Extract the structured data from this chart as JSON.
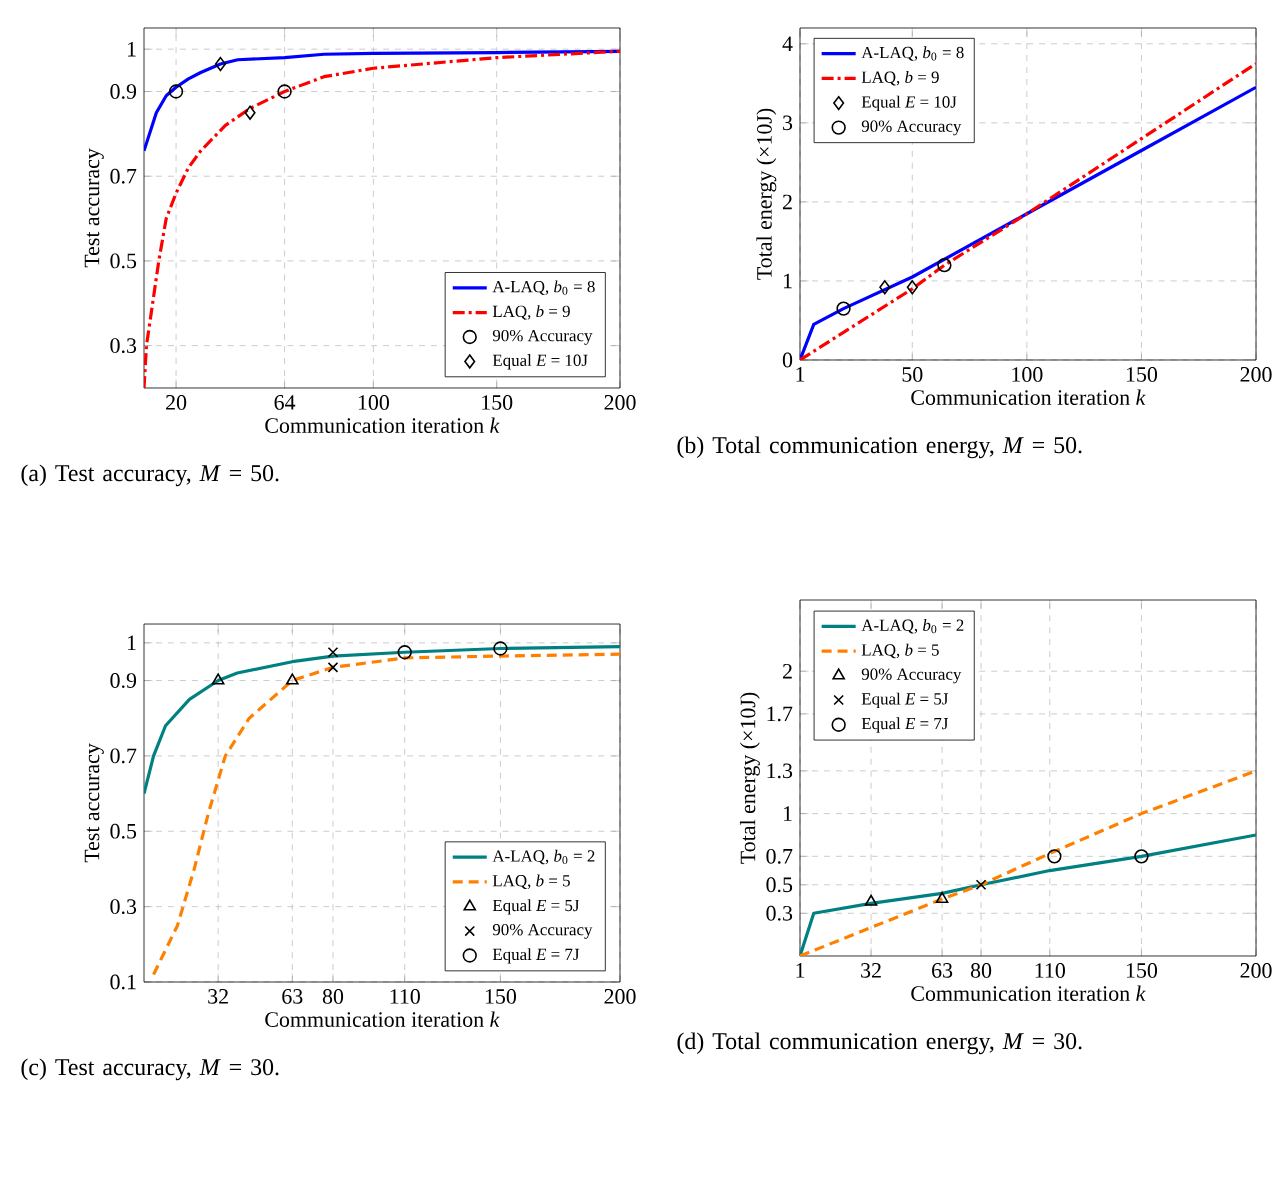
{
  "chart_data": [
    {
      "type": "line",
      "xlabel": "Communication iteration *k*",
      "ylabel": "Test accuracy",
      "annotations": [
        "(a) Test accuracy, *M* = 50."
      ],
      "xlim": [
        7,
        200
      ],
      "ylim": [
        0.2,
        1.05
      ],
      "xticks": [
        20,
        64,
        100,
        150,
        200
      ],
      "yticks": [
        0.3,
        0.5,
        0.7,
        0.9,
        1
      ],
      "grid": true,
      "legend": "bottom right",
      "series": [
        {
          "name": "A-LAQ, *b*$_{0}$ = 8",
          "color": "#0000ff",
          "line_style": "solid",
          "x": [
            7,
            12,
            16,
            20,
            25,
            30,
            38,
            45,
            64,
            80,
            100,
            150,
            200
          ],
          "values": [
            0.76,
            0.85,
            0.89,
            0.91,
            0.93,
            0.945,
            0.965,
            0.975,
            0.98,
            0.988,
            0.99,
            0.992,
            0.995
          ]
        },
        {
          "name": "LAQ, *b* = 9",
          "color": "#ff0000",
          "line_style": "dashdot",
          "x": [
            7,
            8,
            10,
            13,
            16,
            20,
            25,
            30,
            40,
            50,
            64,
            80,
            100,
            120,
            150,
            200
          ],
          "values": [
            0.2,
            0.3,
            0.38,
            0.5,
            0.6,
            0.66,
            0.72,
            0.76,
            0.82,
            0.86,
            0.9,
            0.935,
            0.955,
            0.965,
            0.98,
            0.995
          ]
        },
        {
          "name": "90% Accuracy",
          "type": "scatter",
          "marker": "circle",
          "color": "#000000",
          "x": [
            20,
            64
          ],
          "values": [
            0.9,
            0.9
          ]
        },
        {
          "name": "Equal *E* = 10J",
          "type": "scatter",
          "marker": "diamond",
          "color": "#000000",
          "x": [
            38,
            50
          ],
          "values": [
            0.965,
            0.85
          ]
        }
      ]
    },
    {
      "type": "line",
      "xlabel": "Communication iteration *k*",
      "ylabel": "Total energy (×10J)",
      "annotations": [
        "(b) Total communication energy, *M* = 50."
      ],
      "xlim": [
        1,
        200
      ],
      "ylim": [
        0,
        4.2
      ],
      "xticks": [
        1,
        50,
        100,
        150,
        200
      ],
      "yticks": [
        0,
        1,
        2,
        3,
        4
      ],
      "grid": true,
      "legend": "top left",
      "series": [
        {
          "name": "A-LAQ, *b*$_{0}$ = 8",
          "color": "#0000ff",
          "line_style": "solid",
          "x": [
            1,
            7,
            20,
            50,
            100,
            150,
            200
          ],
          "values": [
            0,
            0.45,
            0.65,
            1.05,
            1.85,
            2.65,
            3.45
          ]
        },
        {
          "name": "LAQ, *b* = 9",
          "color": "#ff0000",
          "line_style": "dashdot",
          "x": [
            1,
            20,
            50,
            64,
            100,
            150,
            200
          ],
          "values": [
            0,
            0.35,
            0.9,
            1.2,
            1.85,
            2.8,
            3.75
          ]
        },
        {
          "name": "Equal *E* = 10J",
          "type": "scatter",
          "marker": "diamond",
          "color": "#000000",
          "x": [
            38,
            50
          ],
          "values": [
            0.92,
            0.92
          ]
        },
        {
          "name": "90% Accuracy",
          "type": "scatter",
          "marker": "circle",
          "color": "#000000",
          "x": [
            20,
            64
          ],
          "values": [
            0.65,
            1.2
          ]
        }
      ]
    },
    {
      "type": "line",
      "xlabel": "Communication iteration *k*",
      "ylabel": "Test accuracy",
      "annotations": [
        "(c) Test accuracy, *M* = 30."
      ],
      "xlim": [
        1,
        200
      ],
      "ylim": [
        0.1,
        1.05
      ],
      "xticks": [
        32,
        63,
        80,
        110,
        150,
        200
      ],
      "yticks": [
        0.1,
        0.3,
        0.5,
        0.7,
        0.9,
        1
      ],
      "grid": true,
      "legend": "bottom right",
      "series": [
        {
          "name": "A-LAQ, *b*$_{0}$ = 2",
          "color": "#008080",
          "line_style": "solid",
          "x": [
            1,
            5,
            10,
            20,
            32,
            40,
            63,
            80,
            110,
            150,
            200
          ],
          "values": [
            0.6,
            0.7,
            0.78,
            0.85,
            0.9,
            0.92,
            0.95,
            0.965,
            0.975,
            0.985,
            0.99
          ]
        },
        {
          "name": "LAQ, *b* = 5",
          "color": "#ff8000",
          "line_style": "dashed",
          "x": [
            5,
            15,
            22,
            28,
            35,
            45,
            63,
            80,
            110,
            150,
            200
          ],
          "values": [
            0.12,
            0.25,
            0.4,
            0.55,
            0.7,
            0.8,
            0.9,
            0.935,
            0.96,
            0.965,
            0.97
          ]
        },
        {
          "name": "Equal *E* = 5J",
          "type": "scatter",
          "marker": "triangle",
          "color": "#000000",
          "x": [
            32,
            63
          ],
          "values": [
            0.9,
            0.9
          ]
        },
        {
          "name": "90% Accuracy",
          "type": "scatter",
          "marker": "cross",
          "color": "#000000",
          "x": [
            80,
            80
          ],
          "values": [
            0.975,
            0.935
          ]
        },
        {
          "name": "Equal *E* = 7J",
          "type": "scatter",
          "marker": "circle",
          "color": "#000000",
          "x": [
            110,
            150
          ],
          "values": [
            0.975,
            0.985
          ]
        }
      ]
    },
    {
      "type": "line",
      "xlabel": "Communication iteration *k*",
      "ylabel": "Total energy (×10J)",
      "annotations": [
        "(d) Total communication energy, *M* = 30."
      ],
      "xlim": [
        1,
        200
      ],
      "ylim": [
        0,
        2.5
      ],
      "xticks": [
        1,
        32,
        63,
        80,
        110,
        150,
        200
      ],
      "yticks": [
        0.3,
        0.5,
        0.7,
        1,
        1.3,
        1.7,
        2
      ],
      "grid": true,
      "legend": "top left",
      "series": [
        {
          "name": "A-LAQ, *b*$_{0}$ = 2",
          "color": "#008080",
          "line_style": "solid",
          "x": [
            1,
            7,
            32,
            63,
            80,
            110,
            150,
            200
          ],
          "values": [
            0,
            0.3,
            0.37,
            0.44,
            0.5,
            0.6,
            0.7,
            0.85
          ]
        },
        {
          "name": "LAQ, *b* = 5",
          "color": "#ff8000",
          "line_style": "dashed",
          "x": [
            1,
            32,
            63,
            80,
            110,
            150,
            200
          ],
          "values": [
            0,
            0.2,
            0.4,
            0.5,
            0.72,
            1.0,
            1.3
          ]
        },
        {
          "name": "90% Accuracy",
          "type": "scatter",
          "marker": "triangle",
          "color": "#000000",
          "x": [
            32,
            63
          ],
          "values": [
            0.38,
            0.4
          ]
        },
        {
          "name": "Equal *E* = 5J",
          "type": "scatter",
          "marker": "cross",
          "color": "#000000",
          "x": [
            80
          ],
          "values": [
            0.5
          ]
        },
        {
          "name": "Equal *E* = 7J",
          "type": "scatter",
          "marker": "circle",
          "color": "#000000",
          "x": [
            112,
            150
          ],
          "values": [
            0.7,
            0.7
          ]
        }
      ]
    }
  ]
}
